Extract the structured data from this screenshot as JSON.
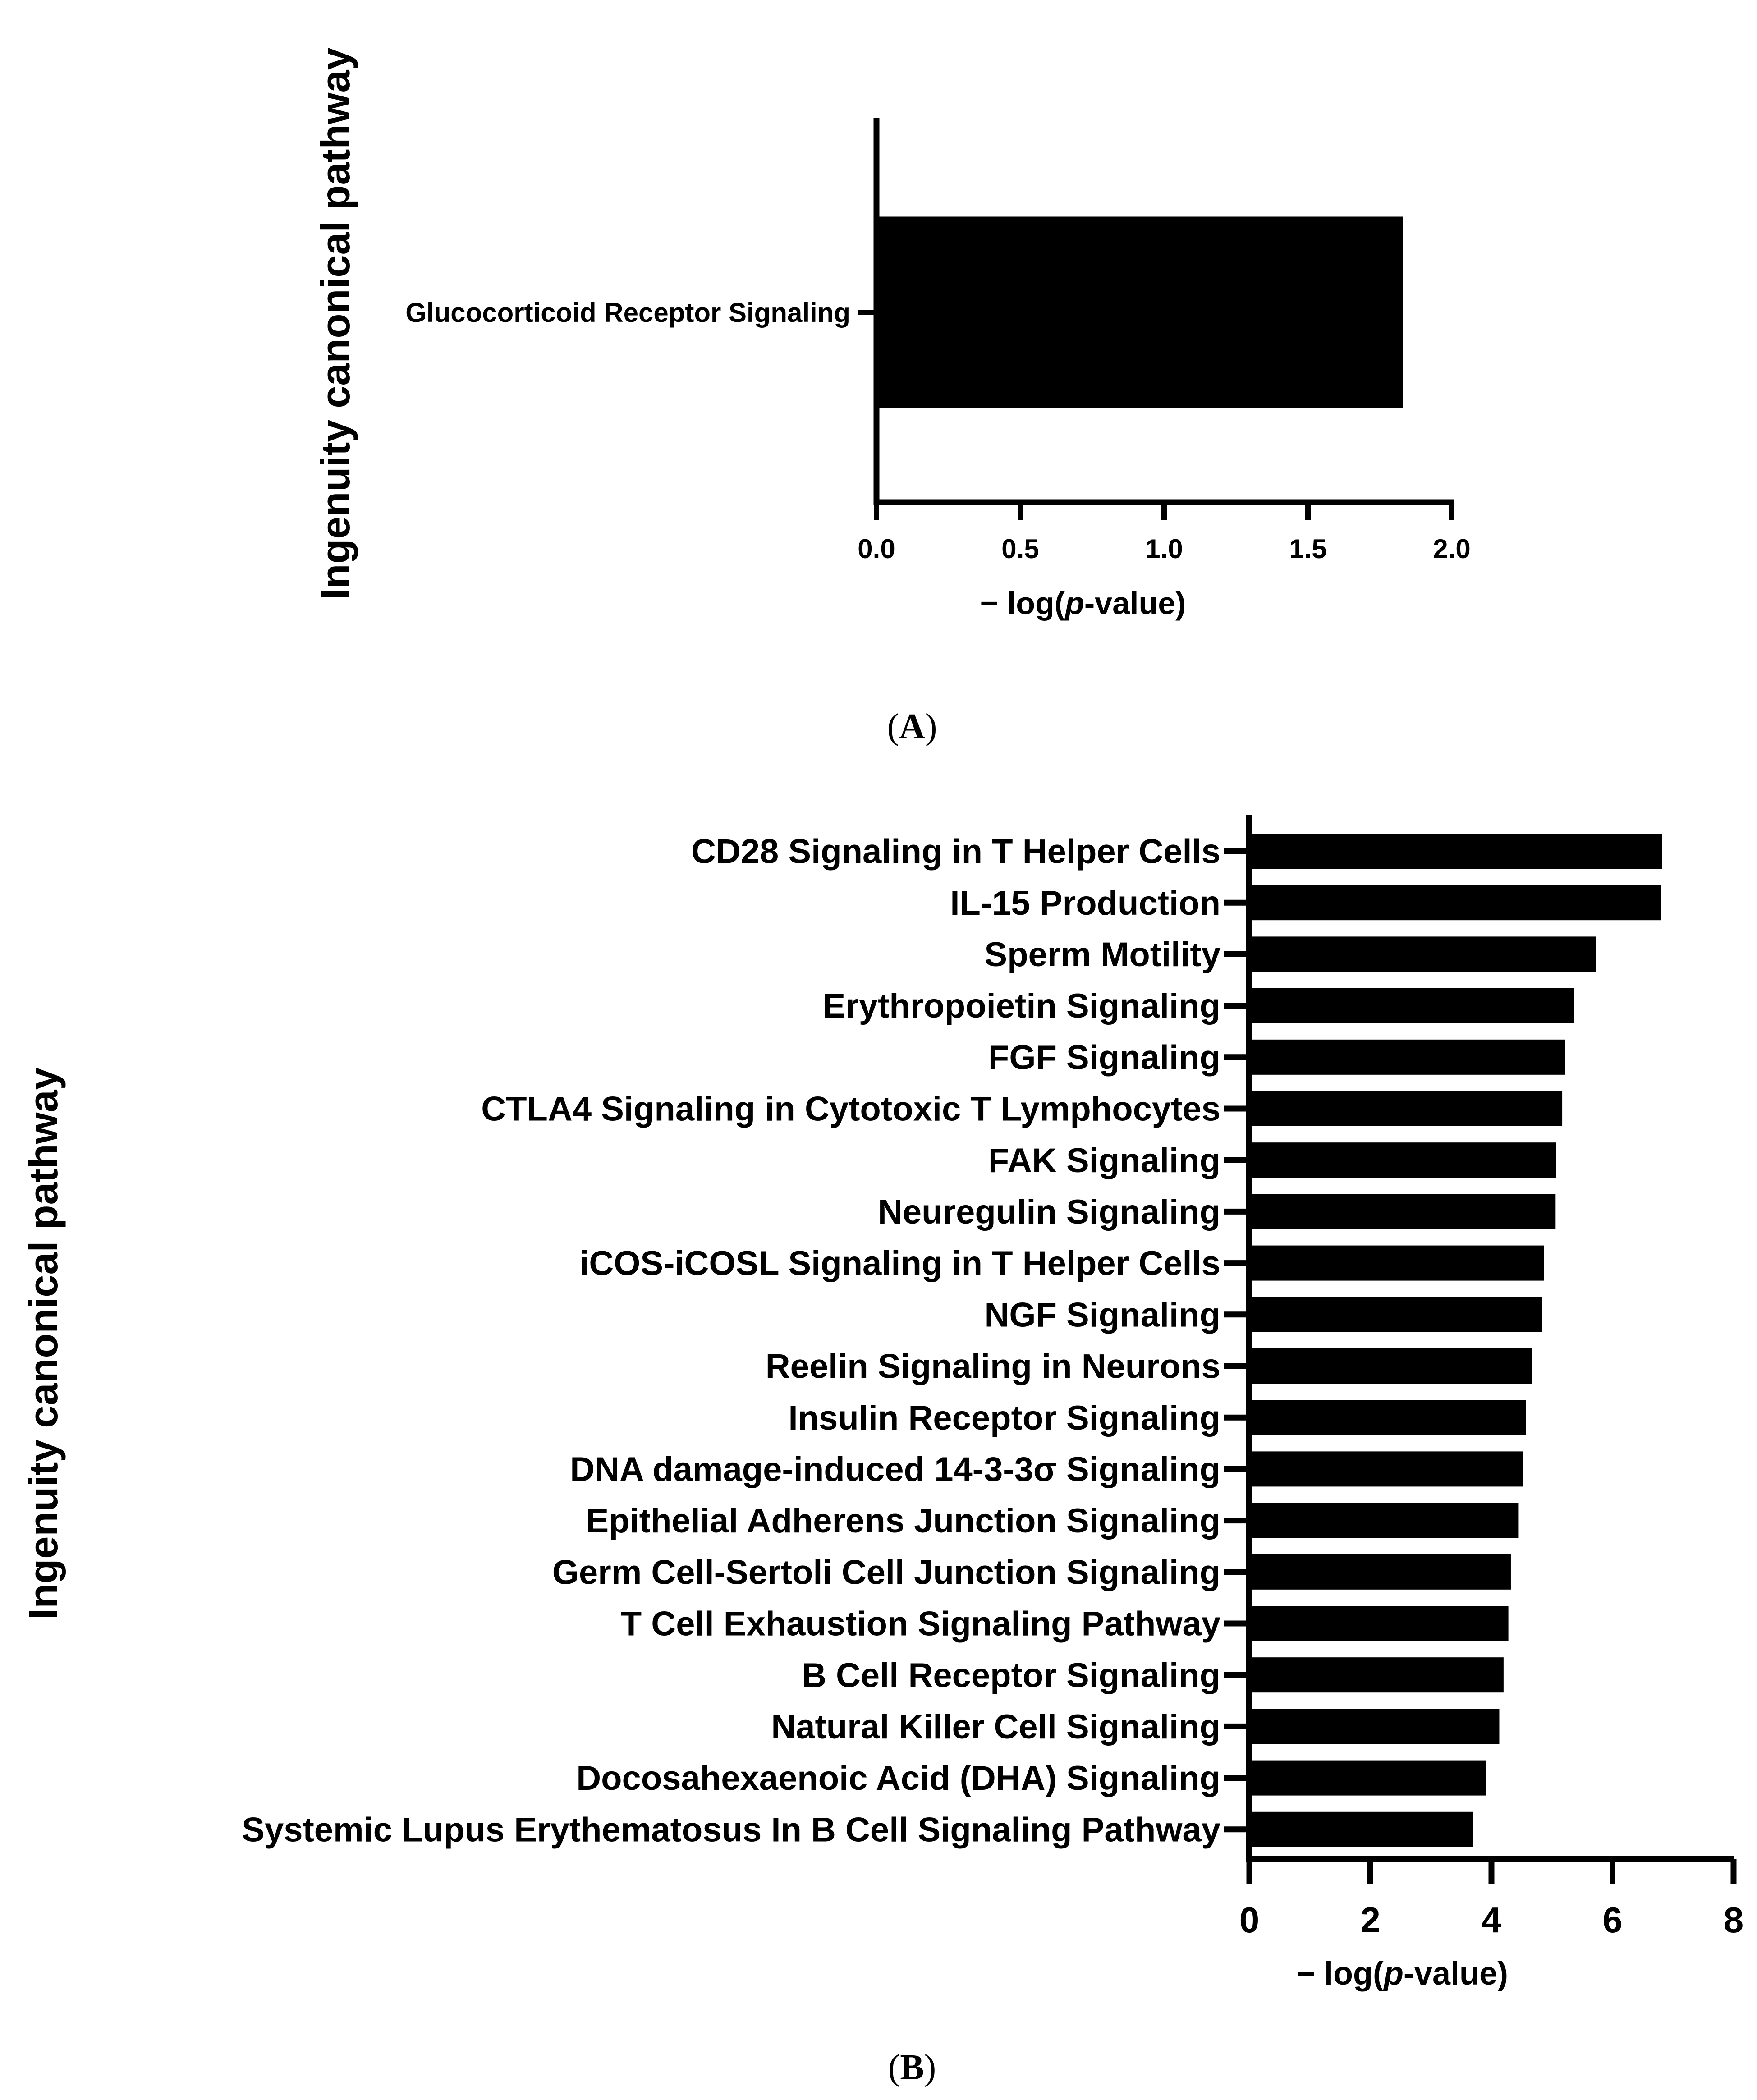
{
  "panel_a": {
    "caption_open": "(",
    "caption_letter": "A",
    "caption_close": ")"
  },
  "panel_b": {
    "caption_open": "(",
    "caption_letter": "B",
    "caption_close": ")"
  },
  "chart_data": [
    {
      "type": "bar",
      "orientation": "horizontal",
      "panel": "A",
      "title": "",
      "categories": [
        "Glucocorticoid Receptor Signaling"
      ],
      "values": [
        1.83
      ],
      "ylabel": "Ingenuity canonical pathway",
      "xlabel": {
        "prefix": "− log(",
        "italic": "p",
        "suffix": "-value)"
      },
      "xlim": [
        0,
        2.0
      ],
      "xticks": [
        "0.0",
        "0.5",
        "1.0",
        "1.5",
        "2.0"
      ],
      "grid": false,
      "color": "#000000"
    },
    {
      "type": "bar",
      "orientation": "horizontal",
      "panel": "B",
      "title": "",
      "categories": [
        "CD28 Signaling in T Helper Cells",
        "IL-15 Production",
        "Sperm Motility",
        "Erythropoietin Signaling",
        "FGF Signaling",
        "CTLA4 Signaling in Cytotoxic T Lymphocytes",
        "FAK Signaling",
        "Neuregulin Signaling",
        "iCOS-iCOSL Signaling in T Helper Cells",
        "NGF Signaling",
        "Reelin Signaling in Neurons",
        "Insulin Receptor Signaling",
        "DNA damage-induced 14-3-3σ Signaling",
        "Epithelial Adherens Junction Signaling",
        "Germ Cell-Sertoli Cell Junction Signaling",
        "T Cell Exhaustion Signaling Pathway",
        "B Cell Receptor Signaling",
        "Natural Killer Cell Signaling",
        "Docosahexaenoic Acid (DHA) Signaling",
        "Systemic Lupus Erythematosus In B Cell Signaling Pathway"
      ],
      "values": [
        6.82,
        6.8,
        5.73,
        5.37,
        5.22,
        5.17,
        5.07,
        5.06,
        4.87,
        4.84,
        4.67,
        4.57,
        4.52,
        4.45,
        4.32,
        4.28,
        4.2,
        4.13,
        3.91,
        3.7
      ],
      "ylabel": "Ingenuity canonical pathway",
      "xlabel": {
        "prefix": "− log(",
        "italic": "p",
        "suffix": "-value)"
      },
      "xlim": [
        0,
        8
      ],
      "xticks": [
        "0",
        "2",
        "4",
        "6",
        "8"
      ],
      "grid": false,
      "color": "#000000"
    }
  ]
}
